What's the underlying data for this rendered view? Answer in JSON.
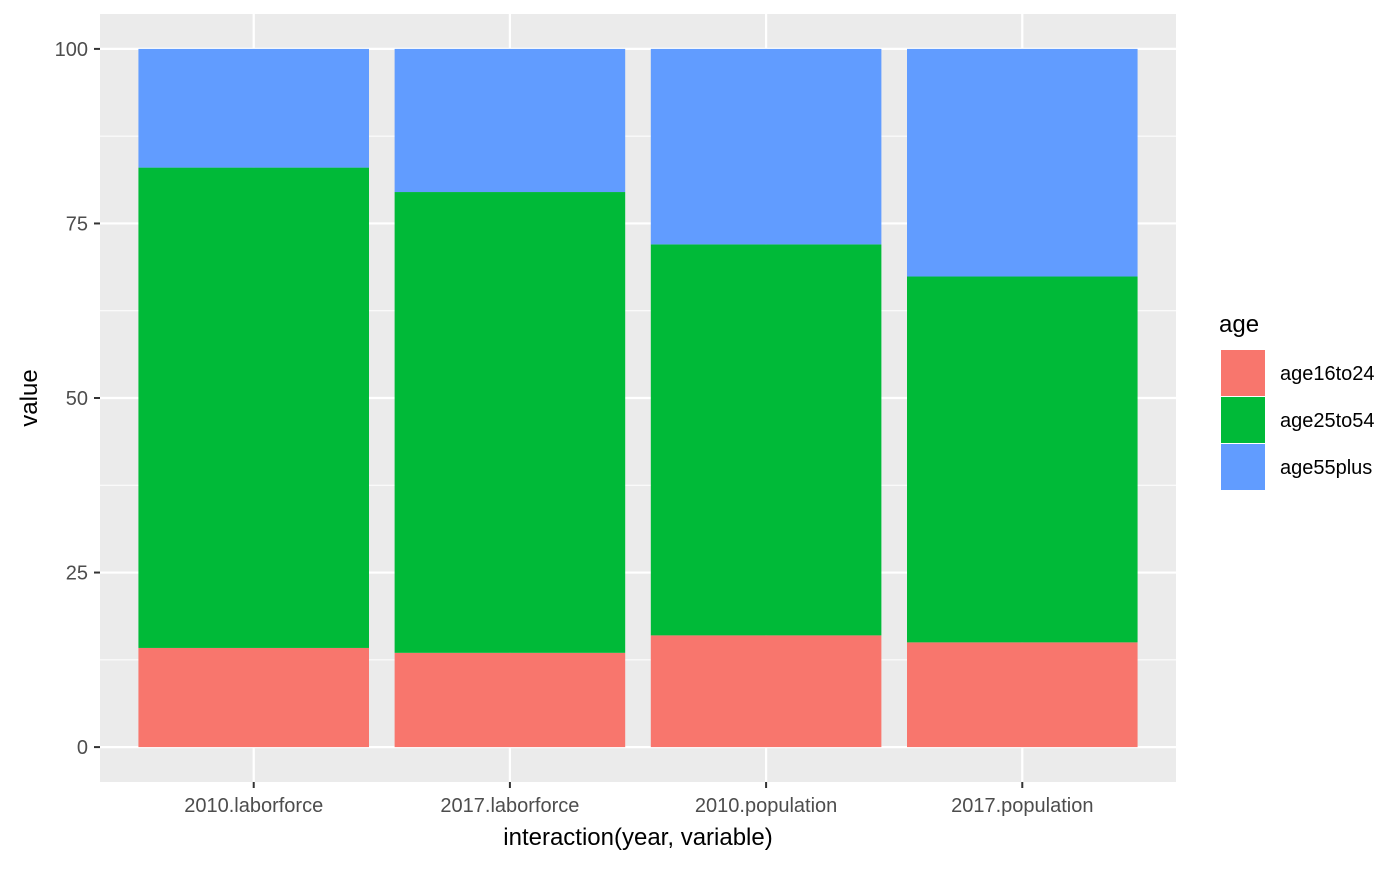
{
  "chart_data": {
    "type": "bar",
    "stacked": true,
    "title": "",
    "xlabel": "interaction(year, variable)",
    "ylabel": "value",
    "categories": [
      "2010.laborforce",
      "2017.laborforce",
      "2010.population",
      "2017.population"
    ],
    "ylim": [
      -5,
      105
    ],
    "yticks": [
      0,
      25,
      50,
      75,
      100
    ],
    "grid": true,
    "legend": {
      "title": "age",
      "position": "right"
    },
    "series": [
      {
        "name": "age16to24",
        "color": "#F8766D",
        "values": [
          14.2,
          13.5,
          16.0,
          15.0
        ]
      },
      {
        "name": "age25to54",
        "color": "#00BA38",
        "values": [
          68.8,
          66.0,
          56.0,
          52.4
        ]
      },
      {
        "name": "age55plus",
        "color": "#619CFF",
        "values": [
          17.0,
          20.5,
          28.0,
          32.6
        ]
      }
    ],
    "panel_background": "#EBEBEB",
    "gridline_color": "#FFFFFF"
  }
}
